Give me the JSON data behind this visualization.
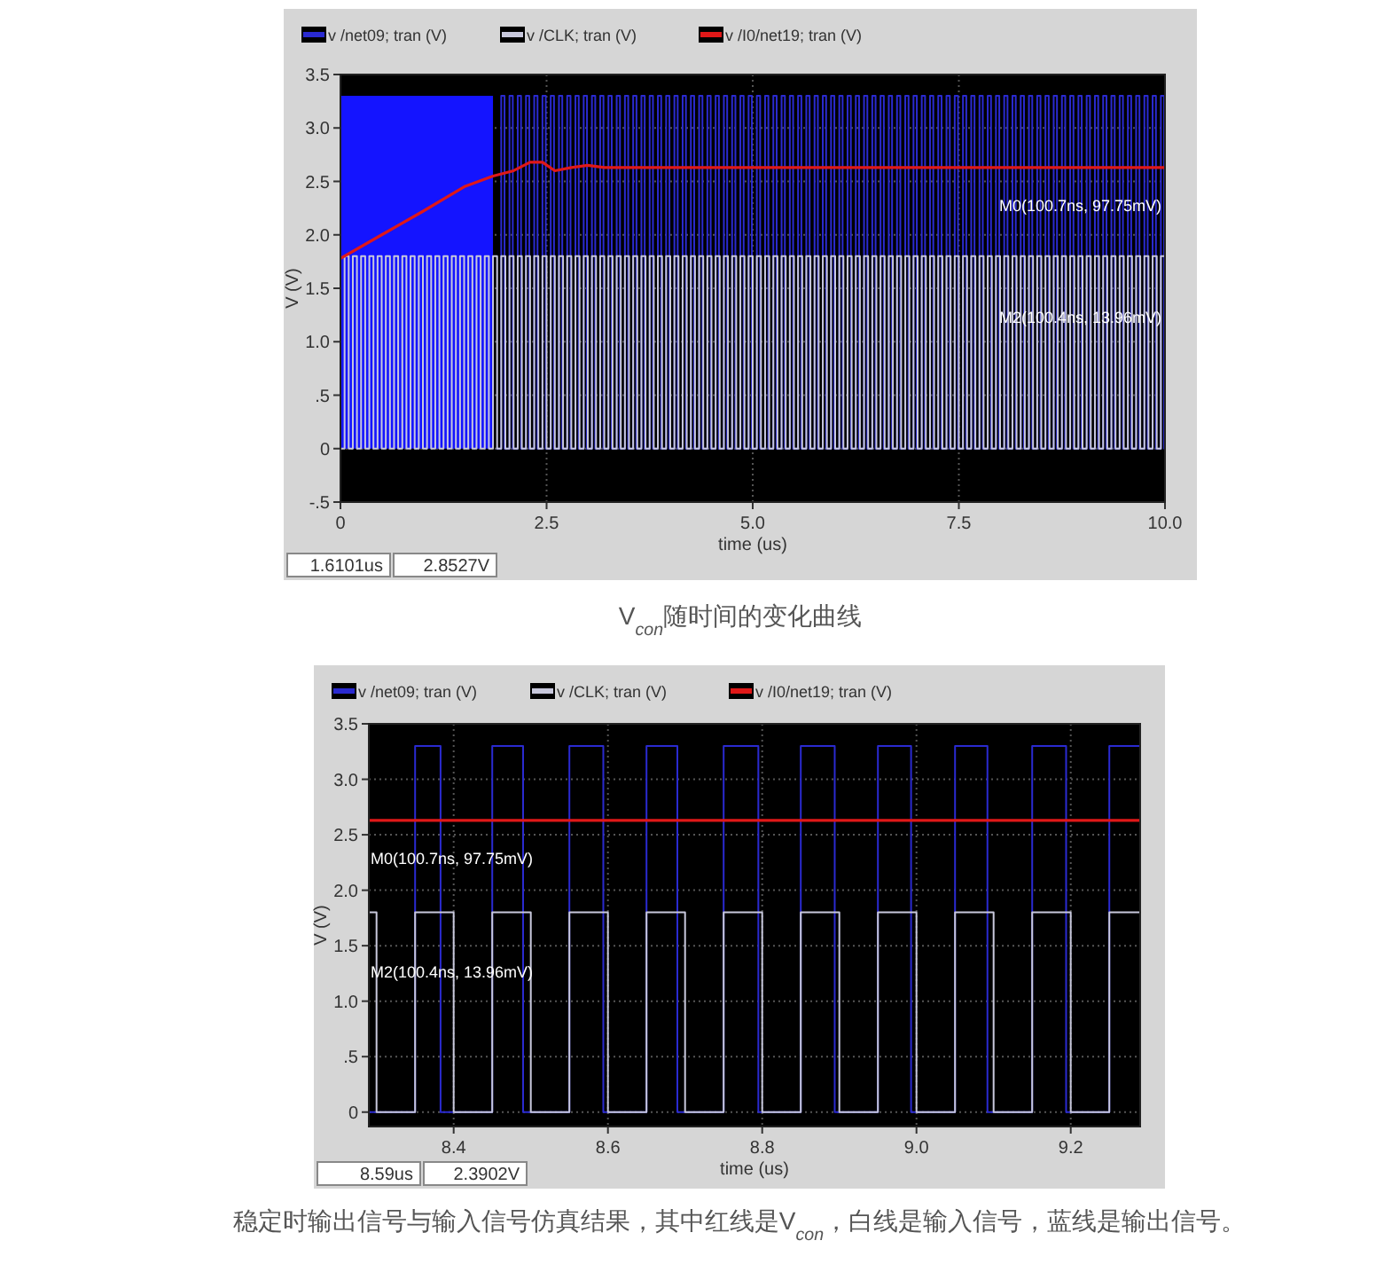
{
  "chart_data": [
    {
      "type": "step",
      "title": "V$_{con}$随时间的变化曲线",
      "xlabel": "time (us)",
      "ylabel": "V (V)",
      "legend": "top",
      "grid": true,
      "xlim": [
        0,
        10
      ],
      "xticks": [
        0,
        2.5,
        {
          "value": 5,
          "label": "5.0"
        },
        7.5,
        {
          "value": 10,
          "label": "10.0"
        }
      ],
      "ylim": [
        -0.5,
        3.5
      ],
      "yticks": [
        {
          "value": -0.5,
          "label": "-.5"
        },
        0,
        {
          "value": 0.5,
          "label": ".5"
        },
        {
          "value": 1,
          "label": "1.0"
        },
        1.5,
        {
          "value": 2,
          "label": "2.0"
        },
        2.5,
        {
          "value": 3,
          "label": "3.0"
        },
        3.5
      ],
      "annotations": [
        "1.6101us",
        "2.8527V",
        "M0(100.7ns, 97.75mV)",
        "M2(100.4ns, 13.96mV)"
      ],
      "series": [
        {
          "type": "area",
          "color": "#1414ff",
          "x": [
            0,
            1.85
          ],
          "values": [
            3.3,
            3.3
          ]
        },
        {
          "name": "v /net09; tran (V)",
          "color": "#2a2ad0",
          "x": [
            1.89,
            1.95,
            1.99,
            2.05,
            2.09,
            2.15,
            2.19,
            2.25,
            2.29,
            2.35,
            2.39,
            2.45,
            2.49,
            2.55,
            2.59,
            2.65,
            2.69,
            2.75,
            2.79,
            2.85,
            2.89,
            2.95,
            2.99,
            3.05,
            3.09,
            3.15,
            3.19,
            3.25,
            3.29,
            3.35,
            3.39,
            3.45,
            3.49,
            3.55,
            3.59,
            3.65,
            3.69,
            3.75,
            3.79,
            3.85,
            3.89,
            3.95,
            3.99,
            4.05,
            4.09,
            4.15,
            4.19,
            4.25,
            4.29,
            4.35,
            4.39,
            4.45,
            4.49,
            4.55,
            4.59,
            4.65,
            4.69,
            4.75,
            4.79,
            4.85,
            4.89,
            4.95,
            4.99,
            5.05,
            5.09,
            5.15,
            5.19,
            5.25,
            5.29,
            5.35,
            5.39,
            5.45,
            5.49,
            5.55,
            5.59,
            5.65,
            5.69,
            5.75,
            5.79,
            5.85,
            5.89,
            5.95,
            5.99,
            6.05,
            6.09,
            6.15,
            6.19,
            6.25,
            6.29,
            6.35,
            6.39,
            6.45,
            6.49,
            6.55,
            6.59,
            6.65,
            6.69,
            6.75,
            6.79,
            6.85,
            6.89,
            6.95,
            6.99,
            7.05,
            7.09,
            7.15,
            7.19,
            7.25,
            7.29,
            7.35,
            7.39,
            7.45,
            7.49,
            7.55,
            7.59,
            7.65,
            7.69,
            7.75,
            7.79,
            7.85,
            7.89,
            7.95,
            7.99,
            8.05,
            8.09,
            8.15,
            8.19,
            8.25,
            8.29,
            8.35,
            8.39,
            8.45,
            8.49,
            8.55,
            8.59,
            8.65,
            8.69,
            8.75,
            8.79,
            8.85,
            8.89,
            8.95,
            8.99,
            9.05,
            9.09,
            9.15,
            9.19,
            9.25,
            9.29,
            9.35,
            9.39,
            9.45,
            9.49,
            9.55,
            9.59,
            9.65,
            9.69,
            9.75,
            9.79,
            9.85,
            9.89,
            9.95,
            9.99,
            10
          ],
          "values": [
            0,
            3.3,
            0,
            3.3,
            0,
            3.3,
            0,
            3.3,
            0,
            3.3,
            0,
            3.3,
            0,
            3.3,
            0,
            3.3,
            0,
            3.3,
            0,
            3.3,
            0,
            3.3,
            0,
            3.3,
            0,
            3.3,
            0,
            3.3,
            0,
            3.3,
            0,
            3.3,
            0,
            3.3,
            0,
            3.3,
            0,
            3.3,
            0,
            3.3,
            0,
            3.3,
            0,
            3.3,
            0,
            3.3,
            0,
            3.3,
            0,
            3.3,
            0,
            3.3,
            0,
            3.3,
            0,
            3.3,
            0,
            3.3,
            0,
            3.3,
            0,
            3.3,
            0,
            3.3,
            0,
            3.3,
            0,
            3.3,
            0,
            3.3,
            0,
            3.3,
            0,
            3.3,
            0,
            3.3,
            0,
            3.3,
            0,
            3.3,
            0,
            3.3,
            0,
            3.3,
            0,
            3.3,
            0,
            3.3,
            0,
            3.3,
            0,
            3.3,
            0,
            3.3,
            0,
            3.3,
            0,
            3.3,
            0,
            3.3,
            0,
            3.3,
            0,
            3.3,
            0,
            3.3,
            0,
            3.3,
            0,
            3.3,
            0,
            3.3,
            0,
            3.3,
            0,
            3.3,
            0,
            3.3,
            0,
            3.3,
            0,
            3.3,
            0,
            3.3,
            0,
            3.3,
            0,
            3.3,
            0,
            3.3,
            0,
            3.3,
            0,
            3.3,
            0,
            3.3,
            0,
            3.3,
            0,
            3.3,
            0,
            3.3,
            0,
            3.3,
            0,
            3.3,
            0,
            3.3,
            0,
            3.3,
            0,
            3.3,
            0,
            3.3,
            0,
            3.3,
            0,
            3.3,
            0,
            3.3,
            0,
            3.3,
            0,
            0
          ]
        },
        {
          "name": "v /CLK; tran (V)",
          "color": "#c8c8dc",
          "x": [
            0,
            0.05,
            0.1,
            0.15,
            0.2,
            0.25,
            0.3,
            0.35,
            0.4,
            0.45,
            0.5,
            0.55,
            0.6,
            0.65,
            0.7,
            0.75,
            0.8,
            0.85,
            0.9,
            0.95,
            1,
            1.05,
            1.1,
            1.15,
            1.2,
            1.25,
            1.3,
            1.35,
            1.4,
            1.45,
            1.5,
            1.55,
            1.6,
            1.65,
            1.7,
            1.75,
            1.8,
            1.85,
            1.9,
            1.95,
            2,
            2.05,
            2.1,
            2.15,
            2.2,
            2.25,
            2.3,
            2.35,
            2.4,
            2.45,
            2.5,
            2.55,
            2.6,
            2.65,
            2.7,
            2.75,
            2.8,
            2.85,
            2.9,
            2.95,
            3,
            3.05,
            3.1,
            3.15,
            3.2,
            3.25,
            3.3,
            3.35,
            3.4,
            3.45,
            3.5,
            3.55,
            3.6,
            3.65,
            3.7,
            3.75,
            3.8,
            3.85,
            3.9,
            3.95,
            4,
            4.05,
            4.1,
            4.15,
            4.2,
            4.25,
            4.3,
            4.35,
            4.4,
            4.45,
            4.5,
            4.55,
            4.6,
            4.65,
            4.7,
            4.75,
            4.8,
            4.85,
            4.9,
            4.95,
            5,
            5.05,
            5.1,
            5.15,
            5.2,
            5.25,
            5.3,
            5.35,
            5.4,
            5.45,
            5.5,
            5.55,
            5.6,
            5.65,
            5.7,
            5.75,
            5.8,
            5.85,
            5.9,
            5.95,
            6,
            6.05,
            6.1,
            6.15,
            6.2,
            6.25,
            6.3,
            6.35,
            6.4,
            6.45,
            6.5,
            6.55,
            6.6,
            6.65,
            6.7,
            6.75,
            6.8,
            6.85,
            6.9,
            6.95,
            7,
            7.05,
            7.1,
            7.15,
            7.2,
            7.25,
            7.3,
            7.35,
            7.4,
            7.45,
            7.5,
            7.55,
            7.6,
            7.65,
            7.7,
            7.75,
            7.8,
            7.85,
            7.9,
            7.95,
            8,
            8.05,
            8.1,
            8.15,
            8.2,
            8.25,
            8.3,
            8.35,
            8.4,
            8.45,
            8.5,
            8.55,
            8.6,
            8.65,
            8.7,
            8.75,
            8.8,
            8.85,
            8.9,
            8.95,
            9,
            9.05,
            9.1,
            9.15,
            9.2,
            9.25,
            9.3,
            9.35,
            9.4,
            9.45,
            9.5,
            9.55,
            9.6,
            9.65,
            9.7,
            9.75,
            9.8,
            9.85,
            9.9,
            9.95,
            10
          ],
          "values": [
            0,
            1.8,
            0,
            1.8,
            0,
            1.8,
            0,
            1.8,
            0,
            1.8,
            0,
            1.8,
            0,
            1.8,
            0,
            1.8,
            0,
            1.8,
            0,
            1.8,
            0,
            1.8,
            0,
            1.8,
            0,
            1.8,
            0,
            1.8,
            0,
            1.8,
            0,
            1.8,
            0,
            1.8,
            0,
            1.8,
            0,
            1.8,
            0,
            1.8,
            0,
            1.8,
            0,
            1.8,
            0,
            1.8,
            0,
            1.8,
            0,
            1.8,
            0,
            1.8,
            0,
            1.8,
            0,
            1.8,
            0,
            1.8,
            0,
            1.8,
            0,
            1.8,
            0,
            1.8,
            0,
            1.8,
            0,
            1.8,
            0,
            1.8,
            0,
            1.8,
            0,
            1.8,
            0,
            1.8,
            0,
            1.8,
            0,
            1.8,
            0,
            1.8,
            0,
            1.8,
            0,
            1.8,
            0,
            1.8,
            0,
            1.8,
            0,
            1.8,
            0,
            1.8,
            0,
            1.8,
            0,
            1.8,
            0,
            1.8,
            0,
            1.8,
            0,
            1.8,
            0,
            1.8,
            0,
            1.8,
            0,
            1.8,
            0,
            1.8,
            0,
            1.8,
            0,
            1.8,
            0,
            1.8,
            0,
            1.8,
            0,
            1.8,
            0,
            1.8,
            0,
            1.8,
            0,
            1.8,
            0,
            1.8,
            0,
            1.8,
            0,
            1.8,
            0,
            1.8,
            0,
            1.8,
            0,
            1.8,
            0,
            1.8,
            0,
            1.8,
            0,
            1.8,
            0,
            1.8,
            0,
            1.8,
            0,
            1.8,
            0,
            1.8,
            0,
            1.8,
            0,
            1.8,
            0,
            1.8,
            0,
            1.8,
            0,
            1.8,
            0,
            1.8,
            0,
            1.8,
            0,
            1.8,
            0,
            1.8,
            0,
            1.8,
            0,
            1.8,
            0,
            1.8,
            0,
            1.8,
            0,
            1.8,
            0,
            1.8,
            0,
            1.8,
            0,
            1.8,
            0,
            1.8,
            0,
            1.8,
            0,
            1.8,
            0,
            1.8,
            0,
            1.8,
            0,
            1.8,
            1.8
          ]
        },
        {
          "name": "v /I0/net19; tran (V)",
          "type": "line",
          "color": "#e01818",
          "x": [
            0,
            0.5,
            1,
            1.5,
            1.85,
            2.1,
            2.3,
            2.45,
            2.6,
            2.8,
            3,
            3.2,
            10
          ],
          "values": [
            1.78,
            2,
            2.22,
            2.45,
            2.55,
            2.6,
            2.68,
            2.68,
            2.6,
            2.63,
            2.65,
            2.63,
            2.63
          ]
        }
      ]
    },
    {
      "type": "step",
      "title": "稳定时输出信号与输入信号仿真结果，其中红线是V$_{con}$，白线是输入信号，蓝线是输出信号。",
      "xlabel": "time (us)",
      "ylabel": "V (V)",
      "legend": "top",
      "grid": true,
      "xlim": [
        8.29,
        9.29
      ],
      "xticks": [
        8.4,
        8.6,
        8.8,
        {
          "value": 9,
          "label": "9.0"
        },
        9.2
      ],
      "ylim": [
        -0.13,
        3.5
      ],
      "yticks": [
        0,
        {
          "value": 0.5,
          "label": ".5"
        },
        {
          "value": 1,
          "label": "1.0"
        },
        1.5,
        {
          "value": 2,
          "label": "2.0"
        },
        2.5,
        {
          "value": 3,
          "label": "3.0"
        },
        3.5
      ],
      "annotations": [
        "8.59us",
        "2.3902V",
        "M0(100.7ns, 97.75mV)",
        "M2(100.4ns, 13.96mV)"
      ],
      "series": [
        {
          "name": "v /net09; tran (V)",
          "color": "#2a2ad0",
          "x": [
            8.29,
            8.35,
            8.383,
            8.45,
            8.49,
            8.55,
            8.594,
            8.65,
            8.69,
            8.75,
            8.795,
            8.85,
            8.894,
            8.95,
            8.993,
            9.05,
            9.092,
            9.15,
            9.194,
            9.25,
            9.29
          ],
          "values": [
            0,
            3.3,
            0,
            3.3,
            0,
            3.3,
            0,
            3.3,
            0,
            3.3,
            0,
            3.3,
            0,
            3.3,
            0,
            3.3,
            0,
            3.3,
            0,
            3.3,
            3.3
          ]
        },
        {
          "name": "v /CLK; tran (V)",
          "color": "#c8c8dc",
          "x": [
            8.29,
            8.3,
            8.35,
            8.4,
            8.45,
            8.5,
            8.55,
            8.6,
            8.65,
            8.7,
            8.75,
            8.8,
            8.85,
            8.9,
            8.95,
            9,
            9.05,
            9.1,
            9.15,
            9.2,
            9.25,
            9.29
          ],
          "values": [
            1.8,
            0,
            1.8,
            0,
            1.8,
            0,
            1.8,
            0,
            1.8,
            0,
            1.8,
            0,
            1.8,
            0,
            1.8,
            0,
            1.8,
            0,
            1.8,
            0,
            1.8,
            1.8
          ]
        },
        {
          "name": "v /I0/net19; tran (V)",
          "type": "line",
          "color": "#e01818",
          "x": [
            8.29,
            9.29
          ],
          "values": [
            2.63,
            2.63
          ]
        }
      ]
    }
  ]
}
